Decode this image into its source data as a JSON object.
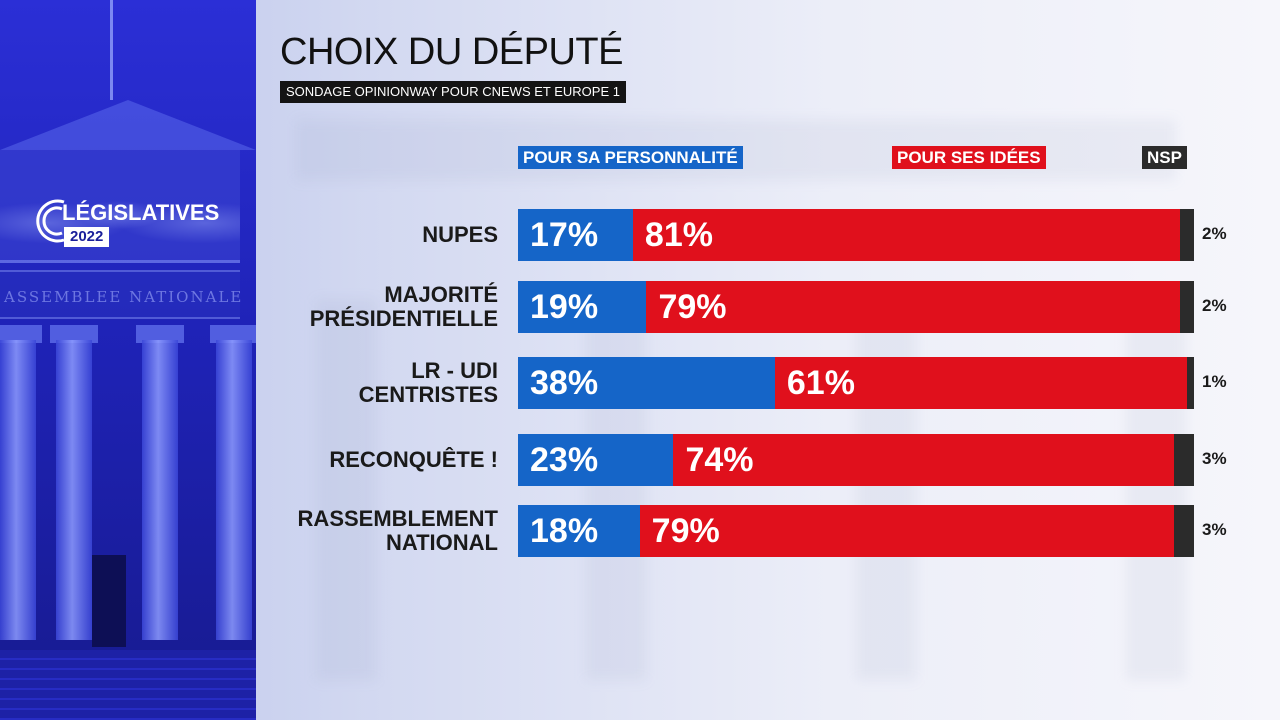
{
  "header": {
    "title": "CHOIX DU DÉPUTÉ",
    "subtitle": "SONDAGE OPINIONWAY POUR CNEWS ET EUROPE 1"
  },
  "logo": {
    "word": "LÉGISLATIVES",
    "year": "2022"
  },
  "building_inscription": "ASSEMBLEE NATIONALE",
  "colors": {
    "personnalite": "#1565c8",
    "idees": "#e0101c",
    "nsp": "#2b2b2b",
    "panel": "#1f23b8"
  },
  "chart_data": {
    "type": "bar",
    "orientation": "horizontal",
    "stacked": true,
    "title": "CHOIX DU DÉPUTÉ",
    "subtitle": "SONDAGE OPINIONWAY POUR CNEWS ET EUROPE 1",
    "value_suffix": "%",
    "categories": [
      [
        "NUPES"
      ],
      [
        "MAJORITÉ",
        "PRÉSIDENTIELLE"
      ],
      [
        "LR - UDI",
        "CENTRISTES"
      ],
      [
        "RECONQUÊTE !"
      ],
      [
        "RASSEMBLEMENT",
        "NATIONAL"
      ]
    ],
    "series": [
      {
        "name": "POUR SA PERSONNALITÉ",
        "color": "#1565c8",
        "values": [
          17,
          19,
          38,
          23,
          18
        ]
      },
      {
        "name": "POUR SES IDÉES",
        "color": "#e0101c",
        "values": [
          81,
          79,
          61,
          74,
          79
        ]
      },
      {
        "name": "NSP",
        "color": "#2b2b2b",
        "values": [
          2,
          2,
          1,
          3,
          3
        ]
      }
    ],
    "legend_position": "top",
    "grid": false
  }
}
